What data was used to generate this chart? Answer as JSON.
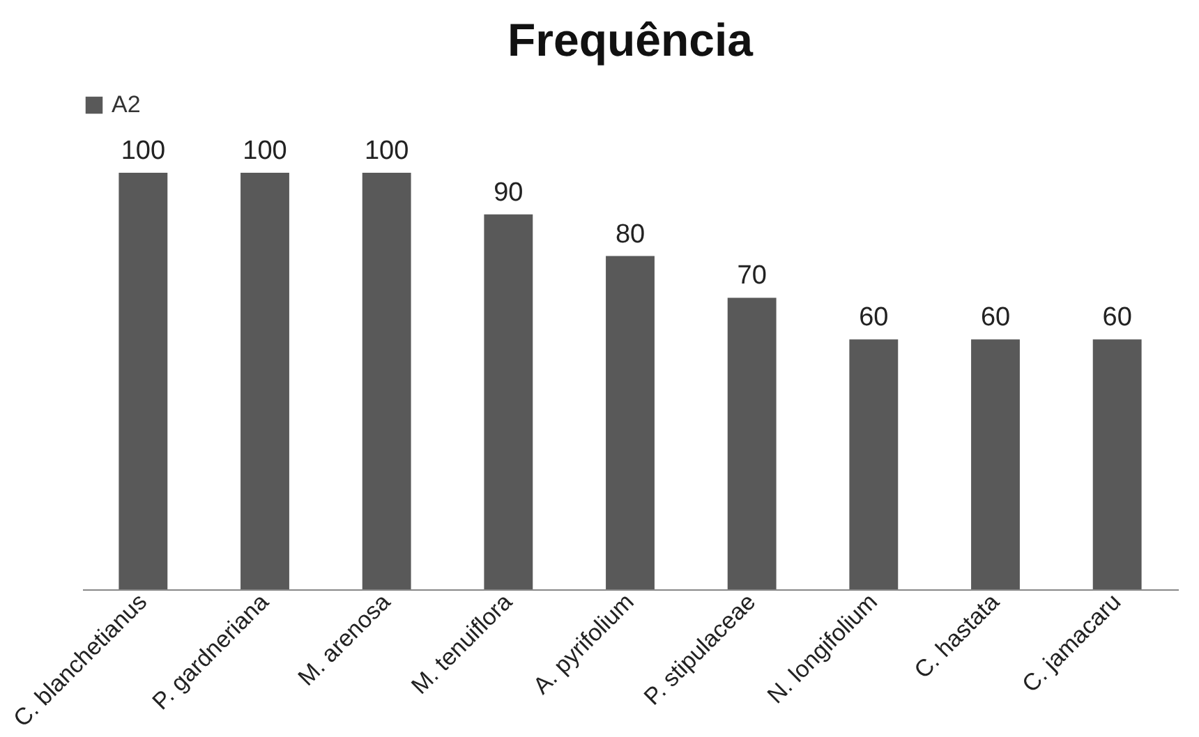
{
  "chart_data": {
    "type": "bar",
    "title": "Frequência",
    "categories": [
      "C. blanchetianus",
      "P. gardneriana",
      "M. arenosa",
      "M. tenuiflora",
      "A. pyrifolium",
      "P. stipulaceae",
      "N. longifolium",
      "C. hastata",
      "C. jamacaru"
    ],
    "series": [
      {
        "name": "A2",
        "color": "#595959",
        "values": [
          100,
          100,
          100,
          90,
          80,
          70,
          60,
          60,
          60
        ]
      }
    ],
    "data_labels": true,
    "legend": "top"
  }
}
